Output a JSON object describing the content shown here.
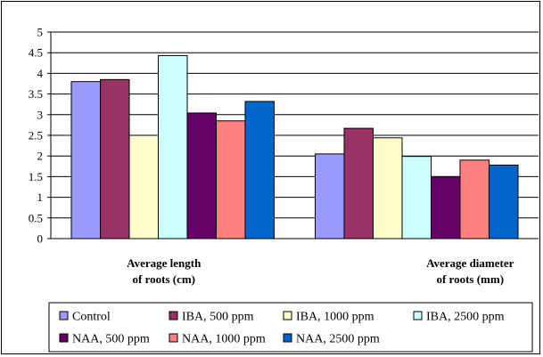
{
  "chart_data": {
    "type": "bar",
    "categories": [
      [
        "Average length",
        "of roots (cm)"
      ],
      [
        "Average diameter",
        "of roots (mm)"
      ]
    ],
    "ylim": [
      0,
      5
    ],
    "yticks": [
      "0",
      "0.5",
      "1",
      "1.5",
      "2",
      "2.5",
      "3",
      "3.5",
      "4",
      "4.5",
      "5"
    ],
    "grid": true,
    "legend_position": "bottom",
    "series": [
      {
        "name": "Control",
        "color": "#9999ff",
        "values": [
          3.8,
          2.05
        ]
      },
      {
        "name": "IBA, 500 ppm",
        "color": "#993366",
        "values": [
          3.85,
          2.67
        ]
      },
      {
        "name": "IBA, 1000 ppm",
        "color": "#ffffcc",
        "values": [
          2.5,
          2.44
        ]
      },
      {
        "name": "IBA, 2500 ppm",
        "color": "#ccffff",
        "values": [
          4.43,
          1.99
        ]
      },
      {
        "name": "NAA, 500 ppm",
        "color": "#660066",
        "values": [
          3.04,
          1.5
        ]
      },
      {
        "name": "NAA, 1000 ppm",
        "color": "#ff8080",
        "values": [
          2.85,
          1.9
        ]
      },
      {
        "name": "NAA, 2500 ppm",
        "color": "#0066cc",
        "values": [
          3.32,
          1.78
        ]
      }
    ]
  }
}
